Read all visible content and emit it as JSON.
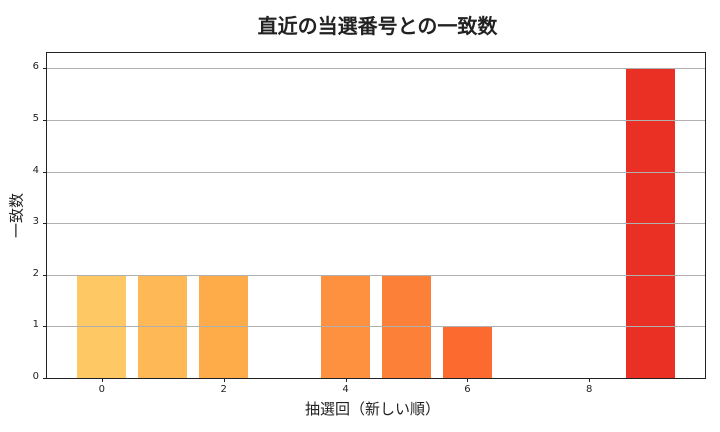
{
  "chart_data": {
    "type": "bar",
    "title": "直近の当選番号との一致数",
    "xlabel": "抽選回（新しい順）",
    "ylabel": "一致数",
    "x": [
      0,
      1,
      2,
      3,
      4,
      5,
      6,
      7,
      8,
      9
    ],
    "values": [
      2,
      2,
      2,
      0,
      2,
      2,
      1,
      0,
      0,
      6
    ],
    "colors": [
      "#fec965",
      "#feb956",
      "#feab4a",
      "#fd9a40",
      "#fd9140",
      "#fd8038",
      "#fc6a30",
      "#f8502a",
      "#f03c26",
      "#ea2f24"
    ],
    "xticks": [
      0,
      2,
      4,
      6,
      8
    ],
    "yticks": [
      0,
      1,
      2,
      3,
      4,
      5,
      6
    ],
    "xlim": [
      -0.9,
      9.9
    ],
    "ylim": [
      0,
      6.3
    ],
    "grid": "y",
    "legend": "none"
  }
}
